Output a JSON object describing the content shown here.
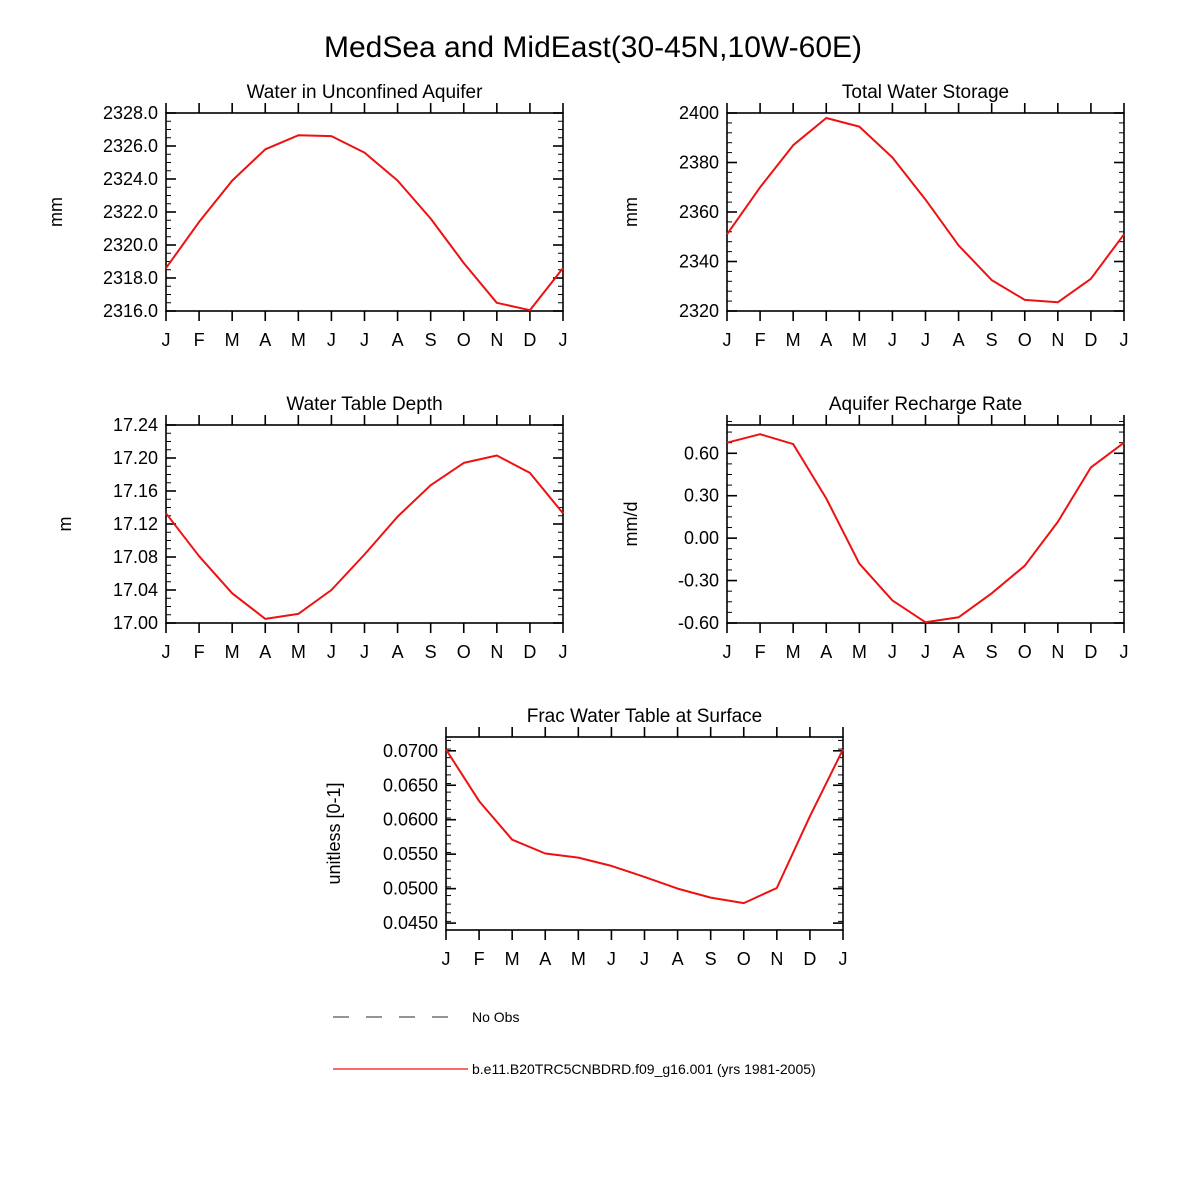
{
  "figure_title": "MedSea and MidEast(30-45N,10W-60E)",
  "months": [
    "J",
    "F",
    "M",
    "A",
    "M",
    "J",
    "J",
    "A",
    "S",
    "O",
    "N",
    "D",
    "J"
  ],
  "chart_data": [
    {
      "type": "line",
      "title": "Water in Unconfined Aquifer",
      "ylabel": "mm",
      "ylim": [
        2316.0,
        2328.0
      ],
      "yticks": [
        2316.0,
        2318.0,
        2320.0,
        2322.0,
        2324.0,
        2326.0,
        2328.0
      ],
      "ytick_labels": [
        "2316.0",
        "2318.0",
        "2320.0",
        "2322.0",
        "2324.0",
        "2326.0",
        "2328.0"
      ],
      "ytick_minor_step": 0.5,
      "series": [
        {
          "name": "b.e11.B20TRC5CNBDRD.f09_g16.001 (yrs 1981-2005)",
          "color": "#ee1111",
          "values": [
            2318.6,
            2321.4,
            2323.9,
            2325.8,
            2326.65,
            2326.6,
            2325.6,
            2323.9,
            2321.6,
            2318.9,
            2316.5,
            2316.05,
            2318.6
          ]
        }
      ]
    },
    {
      "type": "line",
      "title": "Total Water Storage",
      "ylabel": "mm",
      "ylim": [
        2320,
        2400
      ],
      "yticks": [
        2320,
        2340,
        2360,
        2380,
        2400
      ],
      "ytick_labels": [
        "2320",
        "2340",
        "2360",
        "2380",
        "2400"
      ],
      "ytick_minor_step": 4,
      "series": [
        {
          "name": "b.e11.B20TRC5CNBDRD.f09_g16.001 (yrs 1981-2005)",
          "color": "#ee1111",
          "values": [
            2351,
            2370,
            2387,
            2398,
            2394.5,
            2382,
            2365,
            2346.5,
            2332.5,
            2324.5,
            2323.5,
            2333,
            2351
          ]
        }
      ]
    },
    {
      "type": "line",
      "title": "Water Table Depth",
      "ylabel": "m",
      "ylim": [
        17.0,
        17.24
      ],
      "yticks": [
        17.0,
        17.04,
        17.08,
        17.12,
        17.16,
        17.2,
        17.24
      ],
      "ytick_labels": [
        "17.00",
        "17.04",
        "17.08",
        "17.12",
        "17.16",
        "17.20",
        "17.24"
      ],
      "ytick_minor_step": 0.01,
      "series": [
        {
          "name": "b.e11.B20TRC5CNBDRD.f09_g16.001 (yrs 1981-2005)",
          "color": "#ee1111",
          "values": [
            17.133,
            17.081,
            17.036,
            17.005,
            17.011,
            17.04,
            17.083,
            17.129,
            17.167,
            17.194,
            17.203,
            17.182,
            17.133
          ]
        }
      ]
    },
    {
      "type": "line",
      "title": "Aquifer Recharge Rate",
      "ylabel": "mm/d",
      "ylim": [
        -0.6,
        0.8
      ],
      "yticks": [
        -0.6,
        -0.3,
        0.0,
        0.3,
        0.6
      ],
      "ytick_labels": [
        "-0.60",
        "-0.30",
        "0.00",
        "0.30",
        "0.60"
      ],
      "ytick_minor_step": 0.075,
      "series": [
        {
          "name": "b.e11.B20TRC5CNBDRD.f09_g16.001 (yrs 1981-2005)",
          "color": "#ee1111",
          "values": [
            0.675,
            0.735,
            0.665,
            0.28,
            -0.18,
            -0.44,
            -0.595,
            -0.56,
            -0.39,
            -0.195,
            0.115,
            0.5,
            0.675
          ]
        }
      ]
    },
    {
      "type": "line",
      "title": "Frac Water Table at Surface",
      "ylabel": "unitless [0-1]",
      "ylim": [
        0.044,
        0.072
      ],
      "yticks": [
        0.045,
        0.05,
        0.055,
        0.06,
        0.065,
        0.07
      ],
      "ytick_labels": [
        "0.0450",
        "0.0500",
        "0.0550",
        "0.0600",
        "0.0650",
        "0.0700"
      ],
      "ytick_minor_step": 0.00125,
      "series": [
        {
          "name": "b.e11.B20TRC5CNBDRD.f09_g16.001 (yrs 1981-2005)",
          "color": "#ee1111",
          "values": [
            0.0702,
            0.0627,
            0.0571,
            0.0551,
            0.0545,
            0.0533,
            0.0517,
            0.05,
            0.0487,
            0.0479,
            0.0501,
            0.0605,
            0.0702
          ]
        }
      ]
    }
  ],
  "legend": [
    {
      "label": "No Obs",
      "style": "dashed",
      "color": "#555555"
    },
    {
      "label": "b.e11.B20TRC5CNBDRD.f09_g16.001 (yrs 1981-2005)",
      "style": "solid",
      "color": "#ee1111"
    }
  ]
}
